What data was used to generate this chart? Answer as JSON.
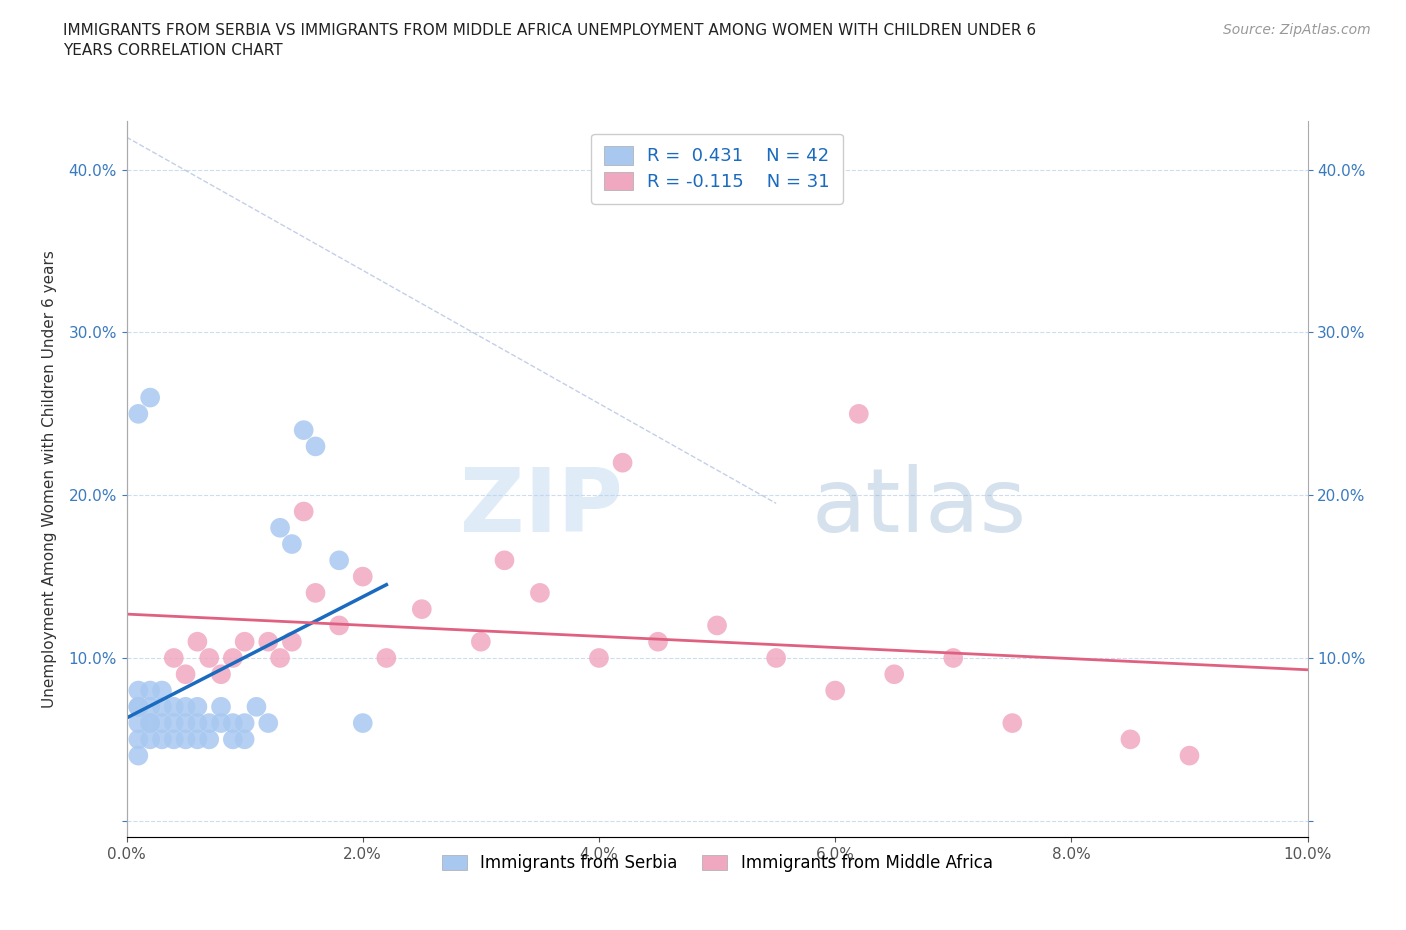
{
  "title": "IMMIGRANTS FROM SERBIA VS IMMIGRANTS FROM MIDDLE AFRICA UNEMPLOYMENT AMONG WOMEN WITH CHILDREN UNDER 6\nYEARS CORRELATION CHART",
  "source": "Source: ZipAtlas.com",
  "ylabel": "Unemployment Among Women with Children Under 6 years",
  "watermark_part1": "ZIP",
  "watermark_part2": "atlas",
  "xlim": [
    0.0,
    0.1
  ],
  "ylim": [
    -0.01,
    0.43
  ],
  "xticks": [
    0.0,
    0.02,
    0.04,
    0.06,
    0.08,
    0.1
  ],
  "yticks": [
    0.0,
    0.1,
    0.2,
    0.3,
    0.4
  ],
  "serbia_R": 0.431,
  "serbia_N": 42,
  "middleafrica_R": -0.115,
  "middleafrica_N": 31,
  "serbia_color": "#a8c8f0",
  "middleafrica_color": "#f0a8c0",
  "serbia_line_color": "#1a6bbf",
  "middleafrica_line_color": "#e06080",
  "legend_label_serbia": "Immigrants from Serbia",
  "legend_label_middleafrica": "Immigrants from Middle Africa",
  "serbia_points_x": [
    0.001,
    0.001,
    0.001,
    0.001,
    0.001,
    0.001,
    0.002,
    0.002,
    0.002,
    0.002,
    0.002,
    0.003,
    0.003,
    0.003,
    0.003,
    0.004,
    0.004,
    0.004,
    0.005,
    0.005,
    0.005,
    0.006,
    0.006,
    0.006,
    0.007,
    0.007,
    0.008,
    0.008,
    0.009,
    0.009,
    0.01,
    0.01,
    0.011,
    0.012,
    0.013,
    0.014,
    0.015,
    0.016,
    0.018,
    0.02,
    0.001,
    0.002
  ],
  "serbia_points_y": [
    0.06,
    0.07,
    0.05,
    0.04,
    0.08,
    0.07,
    0.06,
    0.05,
    0.07,
    0.08,
    0.06,
    0.05,
    0.06,
    0.07,
    0.08,
    0.05,
    0.06,
    0.07,
    0.06,
    0.07,
    0.05,
    0.06,
    0.07,
    0.05,
    0.06,
    0.05,
    0.06,
    0.07,
    0.06,
    0.05,
    0.06,
    0.05,
    0.07,
    0.06,
    0.18,
    0.17,
    0.24,
    0.23,
    0.16,
    0.06,
    0.25,
    0.26
  ],
  "middleafrica_points_x": [
    0.004,
    0.005,
    0.006,
    0.007,
    0.008,
    0.009,
    0.01,
    0.012,
    0.013,
    0.014,
    0.015,
    0.016,
    0.018,
    0.02,
    0.022,
    0.025,
    0.03,
    0.032,
    0.035,
    0.04,
    0.042,
    0.045,
    0.05,
    0.055,
    0.06,
    0.062,
    0.065,
    0.07,
    0.075,
    0.085,
    0.09
  ],
  "middleafrica_points_y": [
    0.1,
    0.09,
    0.11,
    0.1,
    0.09,
    0.1,
    0.11,
    0.11,
    0.1,
    0.11,
    0.19,
    0.14,
    0.12,
    0.15,
    0.1,
    0.13,
    0.11,
    0.16,
    0.14,
    0.1,
    0.22,
    0.11,
    0.12,
    0.1,
    0.08,
    0.25,
    0.09,
    0.1,
    0.06,
    0.05,
    0.04
  ],
  "diag_line_x": [
    0.0,
    0.055
  ],
  "diag_line_y": [
    0.42,
    0.195
  ]
}
